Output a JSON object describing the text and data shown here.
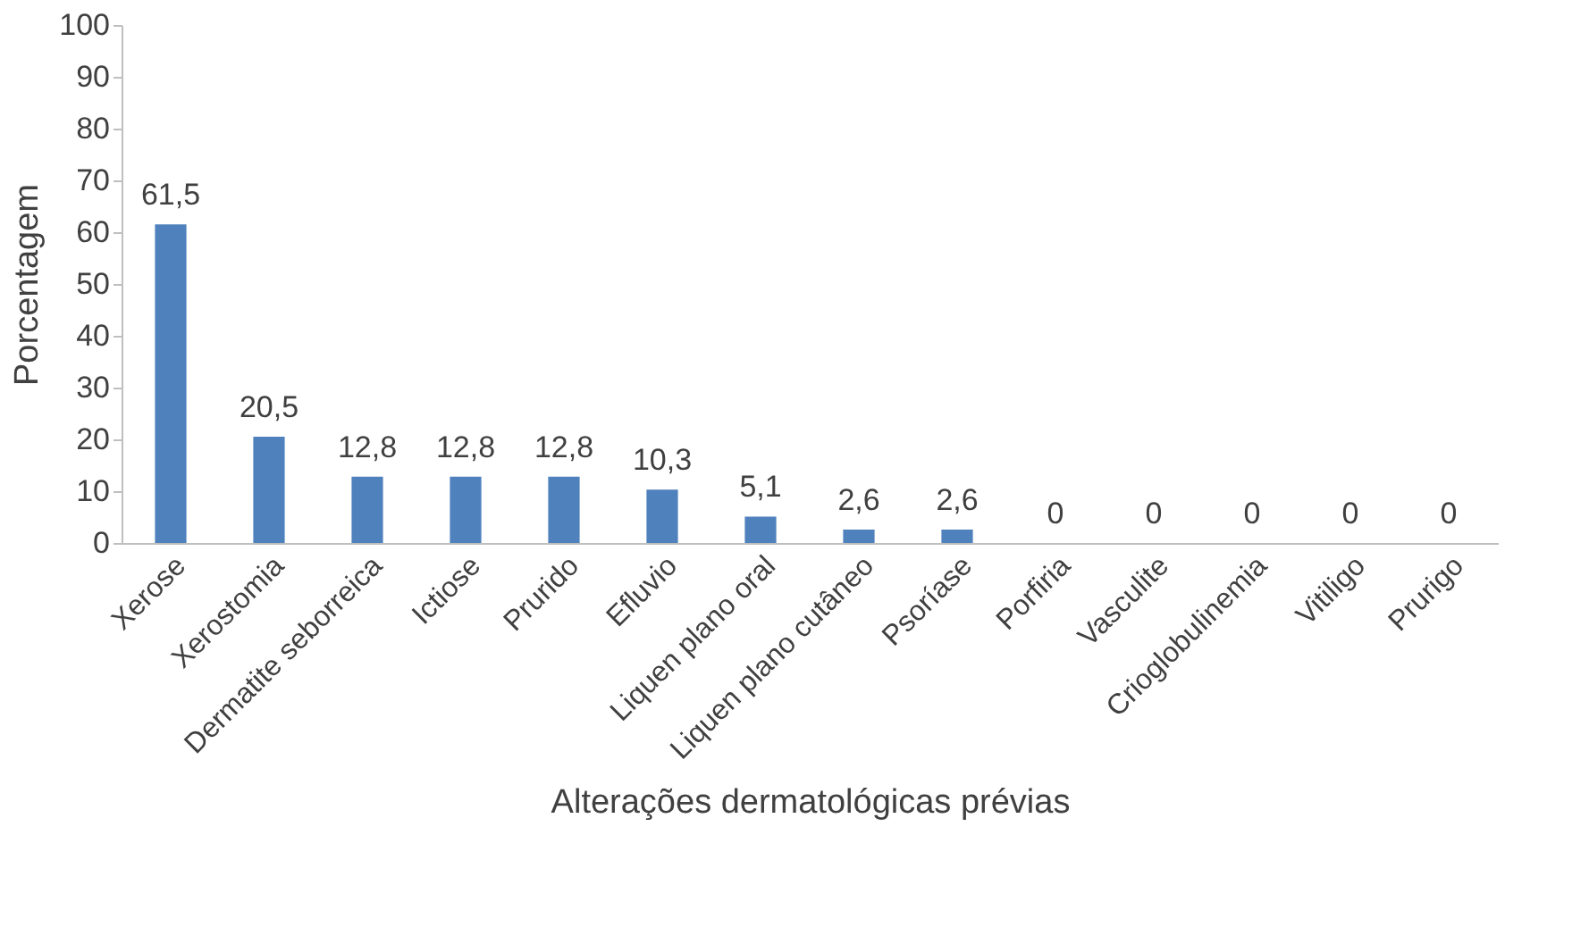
{
  "chart_data": {
    "type": "bar",
    "xlabel": "Alterações dermatológicas prévias",
    "ylabel": "Porcentagem",
    "categories": [
      "Xerose",
      "Xerostomia",
      "Dermatite seborreica",
      "Ictiose",
      "Prurido",
      "Efluvio",
      "Liquen plano oral",
      "Liquen plano cutâneo",
      "Psoríase",
      "Porfiria",
      "Vasculite",
      "Crioglobulinemia",
      "Vitiligo",
      "Prurigo"
    ],
    "values": [
      61.5,
      20.5,
      12.8,
      12.8,
      12.8,
      10.3,
      5.1,
      2.6,
      2.6,
      0,
      0,
      0,
      0,
      0
    ],
    "value_labels": [
      "61,5",
      "20,5",
      "12,8",
      "12,8",
      "12,8",
      "10,3",
      "5,1",
      "2,6",
      "2,6",
      "0",
      "0",
      "0",
      "0",
      "0"
    ],
    "color": "#4f81bd",
    "ylim": [
      0,
      100
    ],
    "yticks": [
      0,
      10,
      20,
      30,
      40,
      50,
      60,
      70,
      80,
      90,
      100
    ],
    "grid": false
  }
}
